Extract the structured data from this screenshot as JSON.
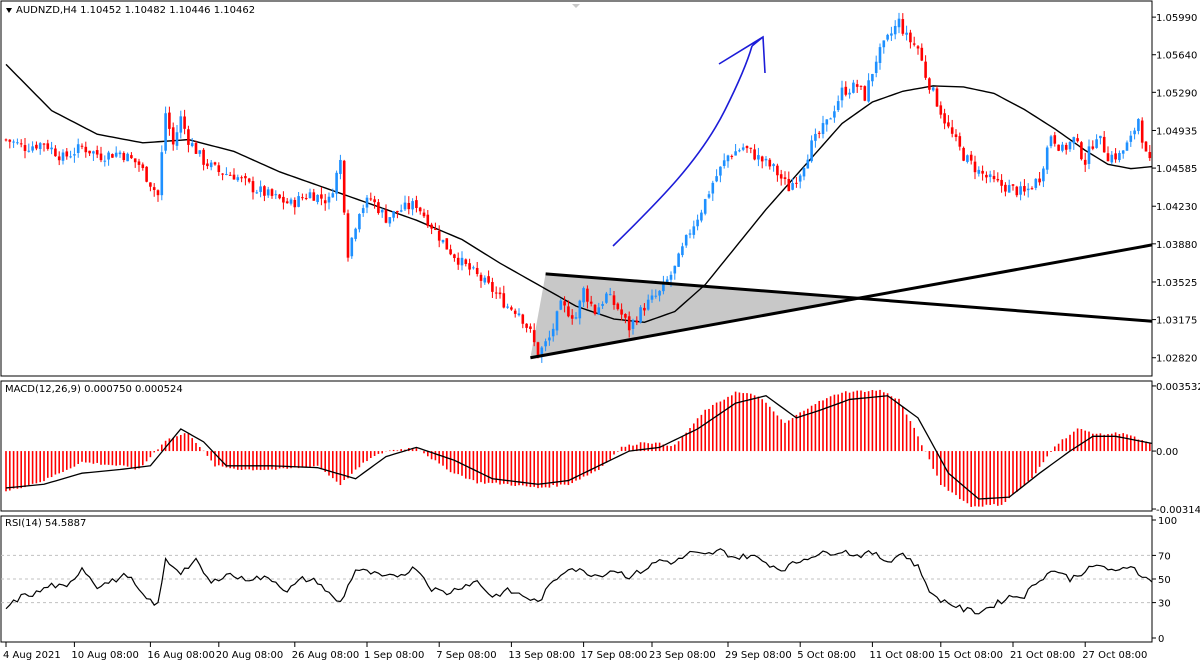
{
  "header": {
    "main_title": "AUDNZD,H4  1.10452 1.10482 1.10446 1.10462",
    "macd_title": "MACD(12,26,9) 0.000750 0.000524",
    "rsi_title": "RSI(14) 54.5887"
  },
  "colors": {
    "bull": "#1E90FF",
    "bear": "#FF0000",
    "ma": "#000000",
    "drawing": "#1C1CD8",
    "triangle_fill": "#C8C8C8",
    "grid": "#C0C0C0"
  },
  "chart_data": [
    {
      "type": "candlestick",
      "title": "AUDNZD,H4",
      "ohlc_header": [
        1.10452,
        1.10482,
        1.10446,
        1.10462
      ],
      "ylim": [
        1.0265,
        1.0614
      ],
      "yticks": [
        "1.05990",
        "1.05640",
        "1.05290",
        "1.04935",
        "1.04585",
        "1.04230",
        "1.03880",
        "1.03525",
        "1.03175",
        "1.02820"
      ],
      "xticks": [
        "4 Aug 2021",
        "10 Aug 08:00",
        "16 Aug 08:00",
        "20 Aug 08:00",
        "26 Aug 08:00",
        "1 Sep 08:00",
        "7 Sep 08:00",
        "13 Sep 08:00",
        "17 Sep 08:00",
        "23 Sep 08:00",
        "29 Sep 08:00",
        "5 Oct 08:00",
        "11 Oct 08:00",
        "15 Oct 08:00",
        "21 Oct 08:00",
        "27 Oct 08:00"
      ],
      "close_path": [
        [
          0,
          1.0485
        ],
        [
          5,
          1.0478
        ],
        [
          10,
          1.0482
        ],
        [
          15,
          1.0468
        ],
        [
          20,
          1.0478
        ],
        [
          25,
          1.047
        ],
        [
          30,
          1.0473
        ],
        [
          35,
          1.0462
        ],
        [
          40,
          1.0433
        ],
        [
          42,
          1.051
        ],
        [
          44,
          1.048
        ],
        [
          46,
          1.0505
        ],
        [
          48,
          1.0485
        ],
        [
          52,
          1.0465
        ],
        [
          56,
          1.0455
        ],
        [
          60,
          1.0452
        ],
        [
          65,
          1.044
        ],
        [
          70,
          1.0432
        ],
        [
          75,
          1.0425
        ],
        [
          80,
          1.0435
        ],
        [
          85,
          1.0428
        ],
        [
          88,
          1.0465
        ],
        [
          90,
          1.038
        ],
        [
          93,
          1.042
        ],
        [
          96,
          1.043
        ],
        [
          100,
          1.0412
        ],
        [
          104,
          1.042
        ],
        [
          108,
          1.0425
        ],
        [
          112,
          1.0405
        ],
        [
          116,
          1.0385
        ],
        [
          120,
          1.037
        ],
        [
          124,
          1.0358
        ],
        [
          128,
          1.0345
        ],
        [
          132,
          1.033
        ],
        [
          135,
          1.0325
        ],
        [
          138,
          1.0305
        ],
        [
          140,
          1.0285
        ],
        [
          143,
          1.03
        ],
        [
          146,
          1.033
        ],
        [
          150,
          1.032
        ],
        [
          152,
          1.0345
        ],
        [
          155,
          1.0325
        ],
        [
          158,
          1.034
        ],
        [
          161,
          1.0328
        ],
        [
          164,
          1.031
        ],
        [
          168,
          1.033
        ],
        [
          172,
          1.0342
        ],
        [
          176,
          1.0365
        ],
        [
          180,
          1.04
        ],
        [
          183,
          1.042
        ],
        [
          186,
          1.0445
        ],
        [
          190,
          1.047
        ],
        [
          194,
          1.0478
        ],
        [
          198,
          1.0468
        ],
        [
          202,
          1.0458
        ],
        [
          206,
          1.044
        ],
        [
          209,
          1.0455
        ],
        [
          212,
          1.048
        ],
        [
          216,
          1.05
        ],
        [
          220,
          1.053
        ],
        [
          224,
          1.0535
        ],
        [
          226,
          1.0525
        ],
        [
          229,
          1.056
        ],
        [
          232,
          1.0578
        ],
        [
          235,
          1.0595
        ],
        [
          237,
          1.058
        ],
        [
          240,
          1.057
        ],
        [
          242,
          1.0545
        ],
        [
          245,
          1.052
        ],
        [
          248,
          1.0495
        ],
        [
          252,
          1.047
        ],
        [
          256,
          1.0455
        ],
        [
          260,
          1.0445
        ],
        [
          264,
          1.044
        ],
        [
          268,
          1.0435
        ],
        [
          272,
          1.045
        ],
        [
          275,
          1.049
        ],
        [
          278,
          1.0475
        ],
        [
          281,
          1.0485
        ],
        [
          284,
          1.0465
        ],
        [
          287,
          1.049
        ],
        [
          290,
          1.047
        ],
        [
          293,
          1.047
        ],
        [
          296,
          1.0485
        ],
        [
          298,
          1.0505
        ],
        [
          300,
          1.047
        ],
        [
          302,
          1.0455
        ]
      ],
      "ma_path": [
        [
          0,
          1.0555
        ],
        [
          12,
          1.0512
        ],
        [
          24,
          1.049
        ],
        [
          36,
          1.0482
        ],
        [
          48,
          1.0485
        ],
        [
          60,
          1.0474
        ],
        [
          72,
          1.0455
        ],
        [
          84,
          1.044
        ],
        [
          96,
          1.0425
        ],
        [
          108,
          1.041
        ],
        [
          120,
          1.0392
        ],
        [
          130,
          1.037
        ],
        [
          140,
          1.035
        ],
        [
          150,
          1.033
        ],
        [
          160,
          1.0318
        ],
        [
          168,
          1.0315
        ],
        [
          176,
          1.0325
        ],
        [
          184,
          1.035
        ],
        [
          192,
          1.0385
        ],
        [
          200,
          1.042
        ],
        [
          210,
          1.046
        ],
        [
          220,
          1.05
        ],
        [
          228,
          1.052
        ],
        [
          236,
          1.053
        ],
        [
          244,
          1.0535
        ],
        [
          252,
          1.0534
        ],
        [
          260,
          1.0528
        ],
        [
          268,
          1.0513
        ],
        [
          276,
          1.0495
        ],
        [
          284,
          1.0475
        ],
        [
          290,
          1.0462
        ],
        [
          296,
          1.0458
        ],
        [
          302,
          1.046
        ]
      ],
      "annotations": {
        "triangle": {
          "apex_low": [
            138,
            1.0282
          ],
          "upper_left": [
            142,
            1.036
          ],
          "lines": "converging"
        },
        "support_line": [
          [
            138,
            1.0282
          ],
          [
            302,
            1.0387
          ]
        ],
        "resistance_line": [
          [
            142,
            1.036
          ],
          [
            302,
            1.0316
          ]
        ],
        "arrow": "hand-drawn upward arrow"
      }
    },
    {
      "type": "bar",
      "title": "MACD(12,26,9)",
      "values_header": [
        0.00075,
        0.000524
      ],
      "ylim": [
        -0.00325,
        0.0038
      ],
      "yticks": [
        "0.003532",
        "0.00",
        "-0.003143"
      ],
      "hist_path": [
        [
          0,
          -0.0022
        ],
        [
          10,
          -0.0016
        ],
        [
          20,
          -0.0006
        ],
        [
          30,
          -0.0008
        ],
        [
          35,
          -0.001
        ],
        [
          42,
          0.0006
        ],
        [
          48,
          0.001
        ],
        [
          55,
          -0.0008
        ],
        [
          62,
          -0.001
        ],
        [
          72,
          -0.001
        ],
        [
          82,
          -0.0008
        ],
        [
          88,
          -0.0018
        ],
        [
          95,
          -0.0005
        ],
        [
          100,
          0.0
        ],
        [
          108,
          0.0002
        ],
        [
          116,
          -0.001
        ],
        [
          124,
          -0.0017
        ],
        [
          132,
          -0.0018
        ],
        [
          140,
          -0.002
        ],
        [
          148,
          -0.0018
        ],
        [
          156,
          -0.001
        ],
        [
          162,
          0.0002
        ],
        [
          168,
          0.0005
        ],
        [
          176,
          0.0003
        ],
        [
          184,
          0.0022
        ],
        [
          192,
          0.0032
        ],
        [
          198,
          0.003
        ],
        [
          205,
          0.0015
        ],
        [
          212,
          0.0025
        ],
        [
          220,
          0.0032
        ],
        [
          230,
          0.0033
        ],
        [
          235,
          0.0028
        ],
        [
          240,
          0.0008
        ],
        [
          246,
          -0.0018
        ],
        [
          254,
          -0.003
        ],
        [
          262,
          -0.0029
        ],
        [
          270,
          -0.0015
        ],
        [
          276,
          0.0003
        ],
        [
          282,
          0.0012
        ],
        [
          288,
          0.0009
        ],
        [
          294,
          0.001
        ],
        [
          302,
          0.0003
        ]
      ],
      "signal_path": [
        [
          0,
          -0.002
        ],
        [
          10,
          -0.0018
        ],
        [
          20,
          -0.0012
        ],
        [
          30,
          -0.001
        ],
        [
          38,
          -0.0008
        ],
        [
          46,
          0.0012
        ],
        [
          52,
          0.0005
        ],
        [
          58,
          -0.0008
        ],
        [
          70,
          -0.0008
        ],
        [
          82,
          -0.0009
        ],
        [
          92,
          -0.0015
        ],
        [
          100,
          -0.0003
        ],
        [
          108,
          0.0002
        ],
        [
          118,
          -0.0005
        ],
        [
          128,
          -0.0015
        ],
        [
          140,
          -0.0018
        ],
        [
          148,
          -0.0016
        ],
        [
          156,
          -0.0008
        ],
        [
          164,
          0.0
        ],
        [
          172,
          0.0002
        ],
        [
          182,
          0.0012
        ],
        [
          192,
          0.0026
        ],
        [
          200,
          0.003
        ],
        [
          208,
          0.0018
        ],
        [
          214,
          0.0022
        ],
        [
          222,
          0.0028
        ],
        [
          232,
          0.003
        ],
        [
          240,
          0.0018
        ],
        [
          248,
          -0.0012
        ],
        [
          256,
          -0.0026
        ],
        [
          264,
          -0.0025
        ],
        [
          272,
          -0.0012
        ],
        [
          280,
          0.0
        ],
        [
          286,
          0.0008
        ],
        [
          292,
          0.0008
        ],
        [
          302,
          0.0004
        ]
      ]
    },
    {
      "type": "line",
      "title": "RSI(14)",
      "value_header": 54.5887,
      "ylim": [
        0,
        100
      ],
      "yticks": [
        "100",
        "70",
        "50",
        "30",
        "0"
      ],
      "guides": [
        70,
        50,
        30
      ],
      "path": [
        [
          0,
          25
        ],
        [
          4,
          35
        ],
        [
          8,
          38
        ],
        [
          12,
          45
        ],
        [
          16,
          42
        ],
        [
          20,
          60
        ],
        [
          24,
          44
        ],
        [
          28,
          48
        ],
        [
          32,
          54
        ],
        [
          36,
          35
        ],
        [
          40,
          28
        ],
        [
          42,
          66
        ],
        [
          46,
          56
        ],
        [
          50,
          65
        ],
        [
          54,
          46
        ],
        [
          58,
          55
        ],
        [
          62,
          50
        ],
        [
          66,
          51
        ],
        [
          70,
          50
        ],
        [
          74,
          40
        ],
        [
          78,
          50
        ],
        [
          82,
          48
        ],
        [
          86,
          34
        ],
        [
          88,
          30
        ],
        [
          92,
          58
        ],
        [
          96,
          55
        ],
        [
          100,
          51
        ],
        [
          104,
          54
        ],
        [
          108,
          60
        ],
        [
          112,
          42
        ],
        [
          116,
          38
        ],
        [
          120,
          44
        ],
        [
          124,
          48
        ],
        [
          128,
          35
        ],
        [
          132,
          40
        ],
        [
          136,
          36
        ],
        [
          140,
          30
        ],
        [
          144,
          48
        ],
        [
          148,
          60
        ],
        [
          152,
          56
        ],
        [
          156,
          53
        ],
        [
          160,
          58
        ],
        [
          164,
          52
        ],
        [
          168,
          58
        ],
        [
          172,
          66
        ],
        [
          176,
          64
        ],
        [
          180,
          72
        ],
        [
          184,
          70
        ],
        [
          188,
          74
        ],
        [
          192,
          68
        ],
        [
          196,
          70
        ],
        [
          200,
          64
        ],
        [
          204,
          58
        ],
        [
          208,
          64
        ],
        [
          212,
          70
        ],
        [
          216,
          72
        ],
        [
          220,
          74
        ],
        [
          224,
          70
        ],
        [
          228,
          72
        ],
        [
          232,
          65
        ],
        [
          236,
          72
        ],
        [
          240,
          60
        ],
        [
          244,
          35
        ],
        [
          248,
          30
        ],
        [
          252,
          24
        ],
        [
          256,
          22
        ],
        [
          260,
          28
        ],
        [
          264,
          35
        ],
        [
          268,
          36
        ],
        [
          272,
          50
        ],
        [
          276,
          58
        ],
        [
          280,
          50
        ],
        [
          284,
          57
        ],
        [
          288,
          62
        ],
        [
          292,
          55
        ],
        [
          296,
          62
        ],
        [
          300,
          50
        ],
        [
          302,
          48
        ]
      ]
    }
  ]
}
